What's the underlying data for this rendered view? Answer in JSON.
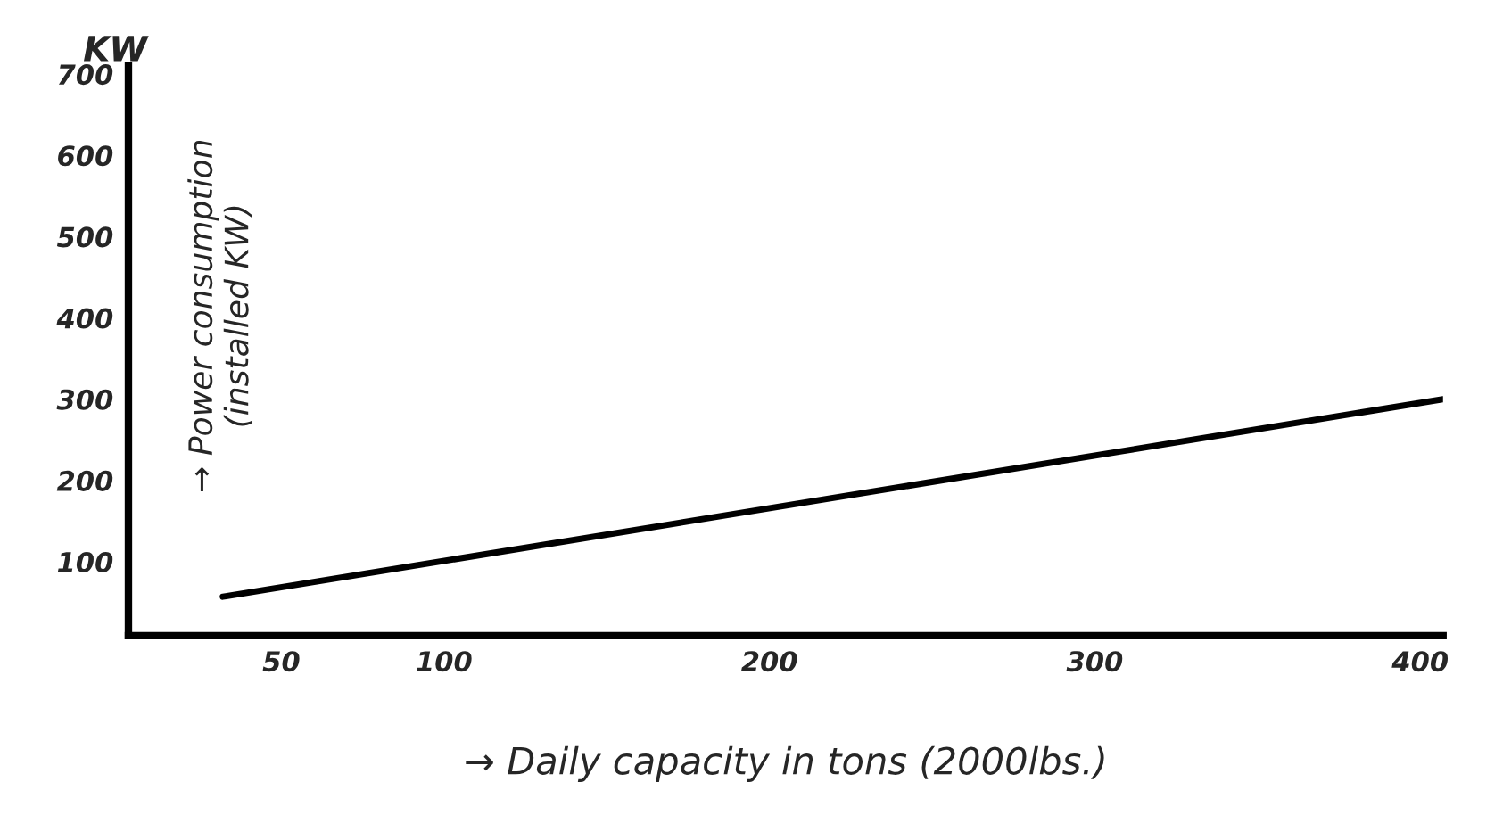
{
  "chart_data": {
    "type": "line",
    "xlabel": "→ Daily capacity in tons (2000lbs.)",
    "ylabel": "→ Power consumption\n(installed KW)",
    "annotations": [
      "KW"
    ],
    "x": [
      32,
      407
    ],
    "series": [
      {
        "color": "#000000",
        "values": [
          57,
          300
        ]
      }
    ],
    "xlim": [
      3,
      407
    ],
    "ylim": [
      9,
      711
    ],
    "xticks": [
      50,
      100,
      200,
      300,
      400
    ],
    "yticks": [
      100,
      200,
      300,
      400,
      500,
      600,
      700
    ],
    "grid": false,
    "legend": false,
    "marker": "none",
    "line_style": "solid"
  }
}
